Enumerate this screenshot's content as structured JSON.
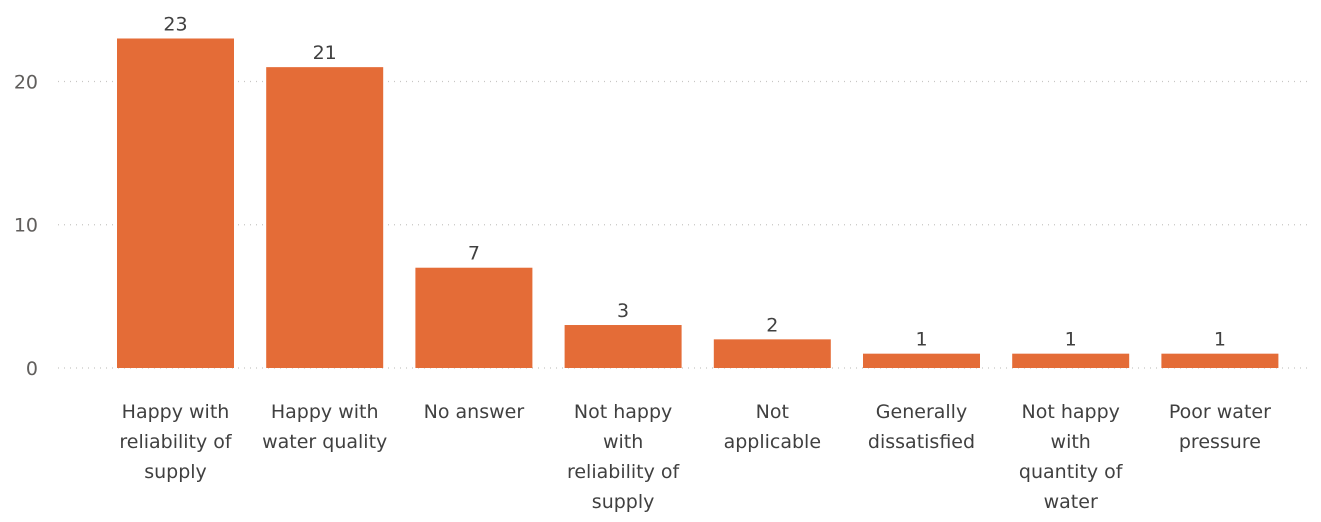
{
  "chart_data": {
    "type": "bar",
    "categories": [
      "Happy with reliability of supply",
      "Happy with water quality",
      "No answer",
      "Not happy with reliability of supply",
      "Not applicable",
      "Generally dissatisfied",
      "Not happy with quantity of water",
      "Poor water pressure"
    ],
    "category_lines": [
      [
        "Happy with",
        "reliability of",
        "supply"
      ],
      [
        "Happy with",
        "water quality"
      ],
      [
        "No answer"
      ],
      [
        "Not happy",
        "with",
        "reliability of",
        "supply"
      ],
      [
        "Not",
        "applicable"
      ],
      [
        "Generally",
        "dissatisfied"
      ],
      [
        "Not happy",
        "with",
        "quantity of",
        "water"
      ],
      [
        "Poor water",
        "pressure"
      ]
    ],
    "values": [
      23,
      21,
      7,
      3,
      2,
      1,
      1,
      1
    ],
    "yticks": [
      0,
      10,
      20
    ],
    "ylim": [
      0,
      24.5
    ],
    "bar_color": "#e46c37",
    "grid": true,
    "title": "",
    "xlabel": "",
    "ylabel": ""
  }
}
